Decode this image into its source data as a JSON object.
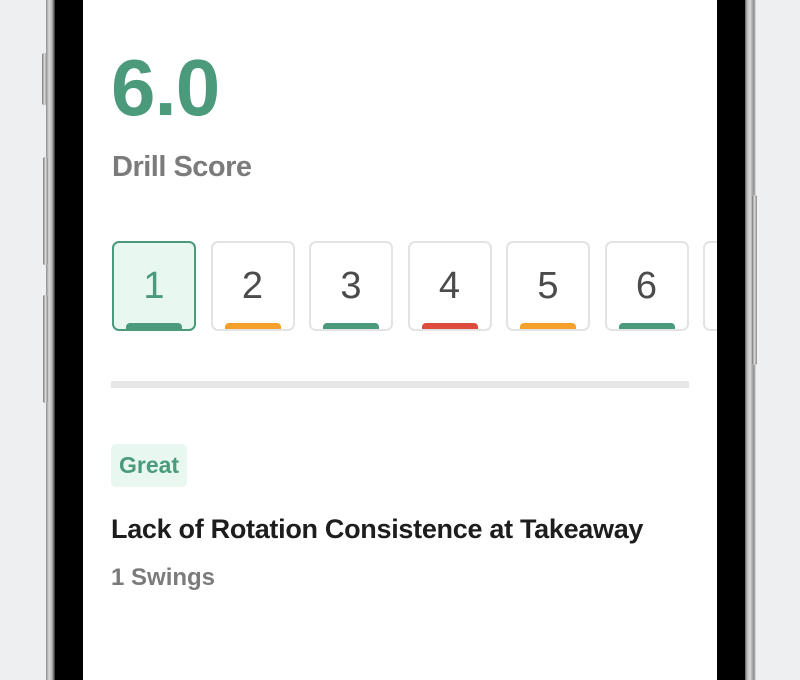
{
  "drill": {
    "score": "6.0",
    "score_label": "Drill Score"
  },
  "swings": [
    {
      "label": "1",
      "color": "#4a9a7b",
      "selected": true
    },
    {
      "label": "2",
      "color": "#f4a02a",
      "selected": false
    },
    {
      "label": "3",
      "color": "#4a9a7b",
      "selected": false
    },
    {
      "label": "4",
      "color": "#dd4b3c",
      "selected": false
    },
    {
      "label": "5",
      "color": "#f4a02a",
      "selected": false
    },
    {
      "label": "6",
      "color": "#4a9a7b",
      "selected": false
    },
    {
      "label": "",
      "color": "",
      "selected": false
    }
  ],
  "result": {
    "badge": "Great",
    "title": "Lack of Rotation Consistence at Takeaway",
    "count": "1 Swings"
  },
  "colors": {
    "accent": "#4a9a7b"
  }
}
